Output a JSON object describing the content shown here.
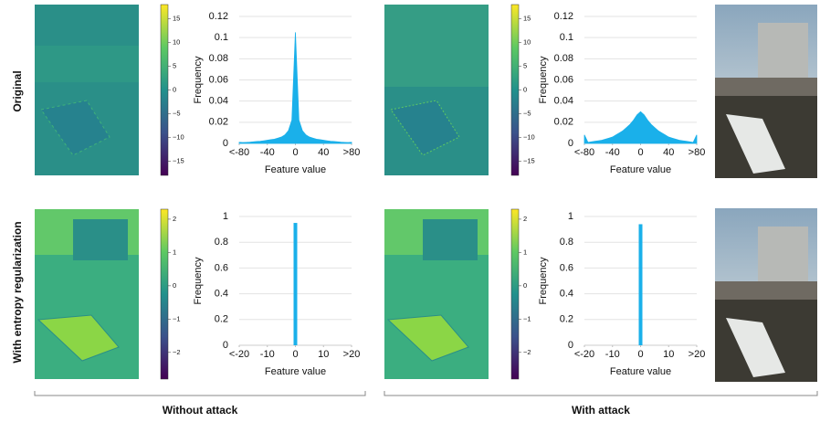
{
  "chart_data": [
    {
      "type": "area",
      "xlabel": "Feature value",
      "ylabel": "Frequency",
      "color": "#1ab0ea",
      "grid": true,
      "x": [
        -80,
        -75,
        -70,
        -65,
        -60,
        -55,
        -50,
        -45,
        -40,
        -35,
        -30,
        -25,
        -20,
        -15,
        -10,
        -5,
        0,
        5,
        10,
        15,
        20,
        25,
        30,
        35,
        40,
        45,
        50,
        55,
        60,
        65,
        70,
        75,
        80
      ],
      "values": [
        0.001,
        0.0008,
        0.001,
        0.0012,
        0.0015,
        0.0018,
        0.002,
        0.0025,
        0.003,
        0.0035,
        0.004,
        0.005,
        0.006,
        0.008,
        0.012,
        0.022,
        0.105,
        0.022,
        0.012,
        0.008,
        0.006,
        0.005,
        0.004,
        0.0035,
        0.003,
        0.0025,
        0.002,
        0.0018,
        0.0015,
        0.0012,
        0.001,
        0.0008,
        0.001
      ],
      "xlim": [
        -80,
        80
      ],
      "xticks": [
        {
          "value": -80,
          "label": "<-80"
        },
        -40,
        0,
        40,
        {
          "value": 80,
          "label": ">80"
        }
      ],
      "ylim": [
        0,
        0.12
      ],
      "yticks": [
        0,
        0.02,
        0.04,
        0.06,
        0.08,
        0.1,
        0.12
      ],
      "colorbar_lim": [
        -18,
        18
      ],
      "colorbar_ticks": [
        {
          "value": -15,
          "label": "−15"
        },
        {
          "value": -10,
          "label": "−10"
        },
        {
          "value": -5,
          "label": "−5"
        },
        0,
        5,
        10,
        15
      ]
    },
    {
      "type": "area",
      "xlabel": "Feature value",
      "ylabel": "Frequency",
      "color": "#1ab0ea",
      "grid": true,
      "x": [
        -80,
        -75,
        -70,
        -65,
        -60,
        -55,
        -50,
        -45,
        -40,
        -35,
        -30,
        -25,
        -20,
        -15,
        -10,
        -5,
        0,
        5,
        10,
        15,
        20,
        25,
        30,
        35,
        40,
        45,
        50,
        55,
        60,
        65,
        70,
        75,
        80
      ],
      "values": [
        0.008,
        0.001,
        0.0015,
        0.002,
        0.0025,
        0.003,
        0.004,
        0.005,
        0.006,
        0.008,
        0.01,
        0.012,
        0.015,
        0.018,
        0.022,
        0.027,
        0.03,
        0.027,
        0.022,
        0.018,
        0.015,
        0.012,
        0.01,
        0.008,
        0.006,
        0.005,
        0.004,
        0.003,
        0.0025,
        0.002,
        0.0015,
        0.001,
        0.008
      ],
      "xlim": [
        -80,
        80
      ],
      "xticks": [
        {
          "value": -80,
          "label": "<-80"
        },
        -40,
        0,
        40,
        {
          "value": 80,
          "label": ">80"
        }
      ],
      "ylim": [
        0,
        0.12
      ],
      "yticks": [
        0,
        0.02,
        0.04,
        0.06,
        0.08,
        0.1,
        0.12
      ],
      "colorbar_lim": [
        -18,
        18
      ],
      "colorbar_ticks": [
        {
          "value": -15,
          "label": "−15"
        },
        {
          "value": -10,
          "label": "−10"
        },
        {
          "value": -5,
          "label": "−5"
        },
        0,
        5,
        10,
        15
      ]
    },
    {
      "type": "bar",
      "xlabel": "Feature value",
      "ylabel": "Frequency",
      "color": "#1ab0ea",
      "grid": true,
      "x": [
        0
      ],
      "values": [
        0.95
      ],
      "xlim": [
        -20,
        20
      ],
      "xticks": [
        {
          "value": -20,
          "label": "<-20"
        },
        -10,
        0,
        10,
        {
          "value": 20,
          "label": ">20"
        }
      ],
      "ylim": [
        0,
        1
      ],
      "yticks": [
        0,
        0.2,
        0.4,
        0.6,
        0.8,
        1
      ],
      "colorbar_lim": [
        -2.8,
        2.3
      ],
      "colorbar_ticks": [
        {
          "value": -2,
          "label": "−2"
        },
        {
          "value": -1,
          "label": "−1"
        },
        0,
        1,
        2
      ]
    },
    {
      "type": "bar",
      "xlabel": "Feature value",
      "ylabel": "Frequency",
      "color": "#1ab0ea",
      "grid": true,
      "x": [
        0
      ],
      "values": [
        0.94
      ],
      "xlim": [
        -20,
        20
      ],
      "xticks": [
        {
          "value": -20,
          "label": "<-20"
        },
        -10,
        0,
        10,
        {
          "value": 20,
          "label": ">20"
        }
      ],
      "ylim": [
        0,
        1
      ],
      "yticks": [
        0,
        0.2,
        0.4,
        0.6,
        0.8,
        1
      ],
      "colorbar_lim": [
        -2.8,
        2.3
      ],
      "colorbar_ticks": [
        {
          "value": -2,
          "label": "−2"
        },
        {
          "value": -1,
          "label": "−1"
        },
        0,
        1,
        2
      ]
    }
  ],
  "row_labels": [
    "Original",
    "With entropy regularization"
  ],
  "group_labels": [
    "Without attack",
    "With attack"
  ]
}
